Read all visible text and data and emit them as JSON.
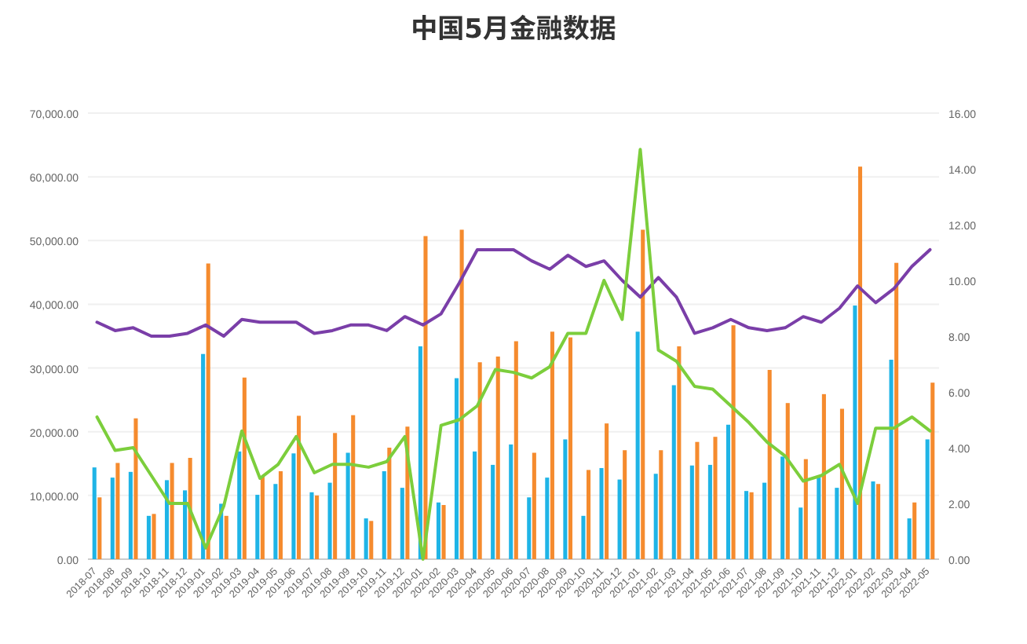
{
  "chart_data": {
    "type": "bar",
    "title": "中国5月金融数据",
    "categories": [
      "2018-07",
      "2018-08",
      "2018-09",
      "2018-10",
      "2018-11",
      "2018-12",
      "2019-01",
      "2019-02",
      "2019-03",
      "2019-04",
      "2019-05",
      "2019-06",
      "2019-07",
      "2019-08",
      "2019-09",
      "2019-10",
      "2019-11",
      "2019-12",
      "2020-01",
      "2020-02",
      "2020-03",
      "2020-04",
      "2020-05",
      "2020-06",
      "2020-07",
      "2020-08",
      "2020-09",
      "2020-10",
      "2020-11",
      "2020-12",
      "2021-01",
      "2021-02",
      "2021-03",
      "2021-04",
      "2021-05",
      "2021-06",
      "2021-07",
      "2021-08",
      "2021-09",
      "2021-10",
      "2021-11",
      "2021-12",
      "2022-01",
      "2022-02",
      "2022-03",
      "2022-04",
      "2022-05"
    ],
    "series": [
      {
        "color": "#1fb4e6",
        "values": [
          14400,
          12800,
          13700,
          6800,
          12400,
          10800,
          32200,
          8700,
          16900,
          10100,
          11800,
          16600,
          10500,
          12000,
          16700,
          6400,
          13800,
          11200,
          33400,
          8900,
          28400,
          16900,
          14800,
          18000,
          9700,
          12800,
          18800,
          6800,
          14300,
          12500,
          35700,
          13400,
          27300,
          14700,
          14800,
          21100,
          10700,
          12000,
          16100,
          8100,
          12800,
          11200,
          39800,
          12200,
          31300,
          6400,
          18800
        ]
      },
      {
        "color": "#f58b2e",
        "values": [
          9700,
          15100,
          22100,
          7100,
          15100,
          15900,
          46400,
          6800,
          28500,
          13000,
          13800,
          22500,
          10000,
          19800,
          22600,
          6000,
          17500,
          20800,
          50700,
          8500,
          51700,
          30900,
          31800,
          34200,
          16700,
          35700,
          34800,
          14000,
          21300,
          17100,
          51700,
          17100,
          33400,
          18400,
          19200,
          36700,
          10500,
          29700,
          24500,
          15700,
          25900,
          23600,
          61600,
          11800,
          46500,
          8900,
          27700
        ]
      },
      {
        "type": "line",
        "axis": "y2",
        "color": "#7a3ea8",
        "values": [
          8.5,
          8.2,
          8.3,
          8.0,
          8.0,
          8.1,
          8.4,
          8.0,
          8.6,
          8.5,
          8.5,
          8.5,
          8.1,
          8.2,
          8.4,
          8.4,
          8.2,
          8.7,
          8.4,
          8.8,
          9.9,
          11.1,
          11.1,
          11.1,
          10.7,
          10.4,
          10.9,
          10.5,
          10.7,
          10.0,
          9.4,
          10.1,
          9.4,
          8.1,
          8.3,
          8.6,
          8.3,
          8.2,
          8.3,
          8.7,
          8.5,
          9.0,
          9.8,
          9.2,
          9.7,
          10.5,
          11.1
        ]
      },
      {
        "type": "line",
        "axis": "y2",
        "color": "#7cce3c",
        "values": [
          5.1,
          3.9,
          4.0,
          3.0,
          2.0,
          2.0,
          0.4,
          1.9,
          4.6,
          2.9,
          3.4,
          4.4,
          3.1,
          3.4,
          3.4,
          3.3,
          3.5,
          4.4,
          0.0,
          4.8,
          5.0,
          5.5,
          6.8,
          6.7,
          6.5,
          6.9,
          8.1,
          8.1,
          10.0,
          8.6,
          14.7,
          7.5,
          7.1,
          6.2,
          6.1,
          5.5,
          4.9,
          4.2,
          3.7,
          2.8,
          3.0,
          3.4,
          2.0,
          4.7,
          4.7,
          5.1,
          4.6
        ]
      }
    ],
    "ylim": [
      0,
      70000
    ],
    "yticks": [
      {
        "value": 0,
        "label": "0.00"
      },
      {
        "value": 10000,
        "label": "10,000.00"
      },
      {
        "value": 20000,
        "label": "20,000.00"
      },
      {
        "value": 30000,
        "label": "30,000.00"
      },
      {
        "value": 40000,
        "label": "40,000.00"
      },
      {
        "value": 50000,
        "label": "50,000.00"
      },
      {
        "value": 60000,
        "label": "60,000.00"
      },
      {
        "value": 70000,
        "label": "70,000.00"
      }
    ],
    "y2lim": [
      0,
      16
    ],
    "y2ticks": [
      {
        "value": 0,
        "label": "0.00"
      },
      {
        "value": 2,
        "label": "2.00"
      },
      {
        "value": 4,
        "label": "4.00"
      },
      {
        "value": 6,
        "label": "6.00"
      },
      {
        "value": 8,
        "label": "8.00"
      },
      {
        "value": 10,
        "label": "10.00"
      },
      {
        "value": 12,
        "label": "12.00"
      },
      {
        "value": 14,
        "label": "14.00"
      },
      {
        "value": 16,
        "label": "16.00"
      }
    ],
    "grid": "y"
  }
}
